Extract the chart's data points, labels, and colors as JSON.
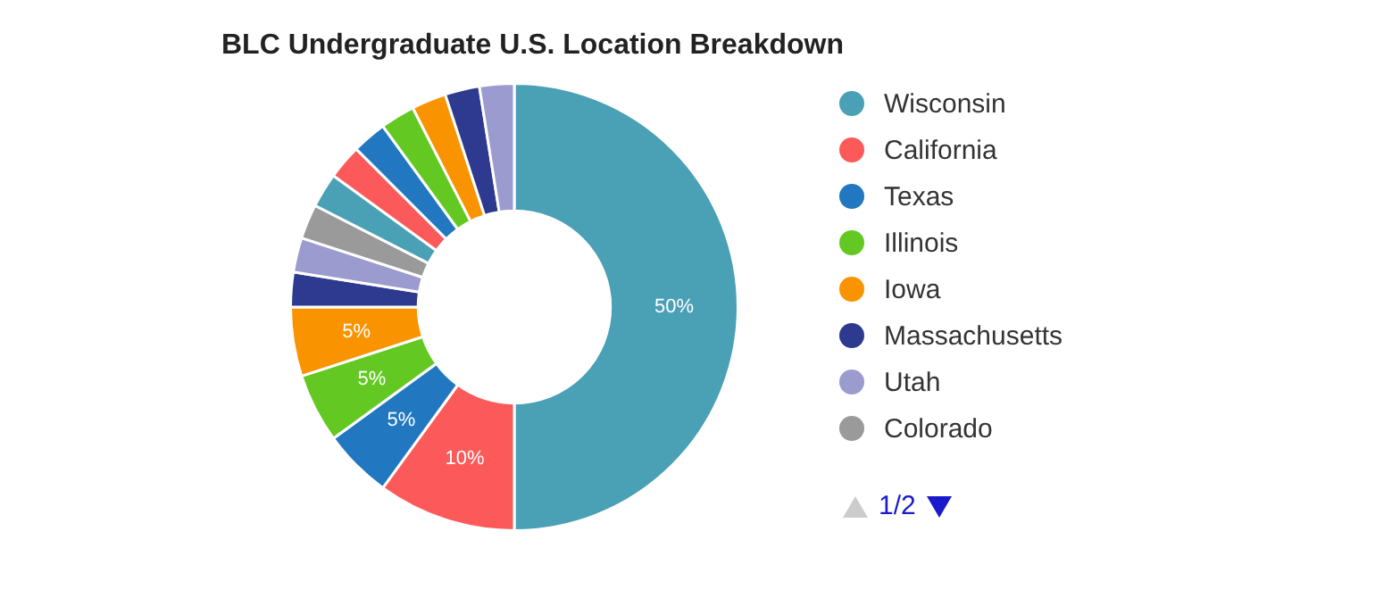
{
  "chart_data": {
    "type": "donut",
    "title": "BLC Undergraduate U.S. Location Breakdown",
    "categories": [
      "Wisconsin",
      "California",
      "Texas",
      "Illinois",
      "Iowa",
      "Massachusetts",
      "Utah",
      "Colorado",
      null,
      null,
      null,
      null,
      null,
      null,
      null
    ],
    "values": [
      50,
      10,
      5,
      5,
      5,
      2.5,
      2.5,
      2.5,
      2.5,
      2.5,
      2.5,
      2.5,
      2.5,
      2.5,
      2.5
    ],
    "colors": [
      "#4aa0b5",
      "#fc5a5a",
      "#2177c0",
      "#63c922",
      "#fa9300",
      "#2e3a8f",
      "#9b9bd0",
      "#9a9a9a",
      "#4aa0b5",
      "#fc5a5a",
      "#2177c0",
      "#63c922",
      "#fa9300",
      "#2e3a8f",
      "#9b9bd0"
    ],
    "value_labels": [
      "50%",
      "10%",
      "5%",
      "5%",
      "5%",
      null,
      null,
      null,
      null,
      null,
      null,
      null,
      null,
      null,
      null
    ],
    "legend": "right",
    "annotations": [
      "1/2"
    ]
  }
}
